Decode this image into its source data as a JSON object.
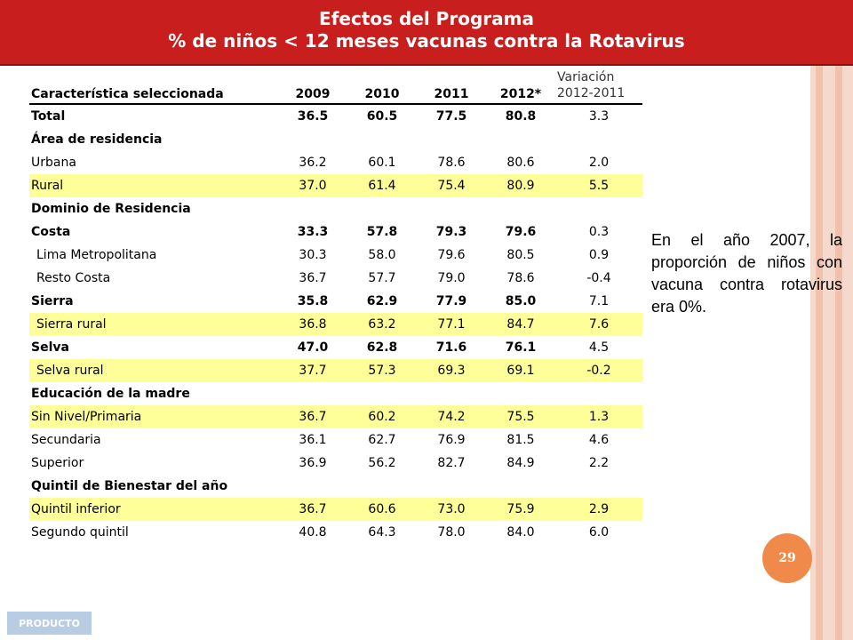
{
  "header": {
    "title": "Efectos del Programa",
    "subtitle": "% de niños < 12 meses vacunas contra la Rotavirus"
  },
  "table": {
    "columns": {
      "characteristic": "Característica seleccionada",
      "y2009": "2009",
      "y2010": "2010",
      "y2011": "2011",
      "y2012": "2012*",
      "variation_line1": "Variación",
      "variation_line2": "2012-2011"
    },
    "rows": [
      {
        "label": "Total",
        "v2009": "36.5",
        "v2010": "60.5",
        "v2011": "77.5",
        "v2012": "80.8",
        "var": "3.3",
        "bold": true,
        "highlight": false,
        "indent": false
      },
      {
        "label": "Área de residencia",
        "section": true
      },
      {
        "label": "Urbana",
        "v2009": "36.2",
        "v2010": "60.1",
        "v2011": "78.6",
        "v2012": "80.6",
        "var": "2.0",
        "bold": false,
        "highlight": false,
        "indent": false
      },
      {
        "label": "Rural",
        "v2009": "37.0",
        "v2010": "61.4",
        "v2011": "75.4",
        "v2012": "80.9",
        "var": "5.5",
        "bold": false,
        "highlight": true,
        "indent": false
      },
      {
        "label": "Dominio de Residencia",
        "section": true
      },
      {
        "label": "Costa",
        "v2009": "33.3",
        "v2010": "57.8",
        "v2011": "79.3",
        "v2012": "79.6",
        "var": "0.3",
        "bold": true,
        "highlight": false,
        "indent": false
      },
      {
        "label": "Lima Metropolitana",
        "v2009": "30.3",
        "v2010": "58.0",
        "v2011": "79.6",
        "v2012": "80.5",
        "var": "0.9",
        "bold": false,
        "highlight": false,
        "indent": true
      },
      {
        "label": "Resto Costa",
        "v2009": "36.7",
        "v2010": "57.7",
        "v2011": "79.0",
        "v2012": "78.6",
        "var": "-0.4",
        "bold": false,
        "highlight": false,
        "indent": true
      },
      {
        "label": "Sierra",
        "v2009": "35.8",
        "v2010": "62.9",
        "v2011": "77.9",
        "v2012": "85.0",
        "var": "7.1",
        "bold": true,
        "highlight": false,
        "indent": false
      },
      {
        "label": "Sierra rural",
        "v2009": "36.8",
        "v2010": "63.2",
        "v2011": "77.1",
        "v2012": "84.7",
        "var": "7.6",
        "bold": false,
        "highlight": true,
        "indent": true
      },
      {
        "label": "Selva",
        "v2009": "47.0",
        "v2010": "62.8",
        "v2011": "71.6",
        "v2012": "76.1",
        "var": "4.5",
        "bold": true,
        "highlight": false,
        "indent": false
      },
      {
        "label": "Selva rural",
        "v2009": "37.7",
        "v2010": "57.3",
        "v2011": "69.3",
        "v2012": "69.1",
        "var": "-0.2",
        "bold": false,
        "highlight": true,
        "indent": true
      },
      {
        "label": "Educación de la madre",
        "section": true
      },
      {
        "label": "Sin Nivel/Primaria",
        "v2009": "36.7",
        "v2010": "60.2",
        "v2011": "74.2",
        "v2012": "75.5",
        "var": "1.3",
        "bold": false,
        "highlight": true,
        "indent": false
      },
      {
        "label": "Secundaria",
        "v2009": "36.1",
        "v2010": "62.7",
        "v2011": "76.9",
        "v2012": "81.5",
        "var": "4.6",
        "bold": false,
        "highlight": false,
        "indent": false
      },
      {
        "label": "Superior",
        "v2009": "36.9",
        "v2010": "56.2",
        "v2011": "82.7",
        "v2012": "84.9",
        "var": "2.2",
        "bold": false,
        "highlight": false,
        "indent": false
      },
      {
        "label": "Quintil de Bienestar del año",
        "section": true
      },
      {
        "label": "Quintil inferior",
        "v2009": "36.7",
        "v2010": "60.6",
        "v2011": "73.0",
        "v2012": "75.9",
        "var": "2.9",
        "bold": false,
        "highlight": true,
        "indent": false
      },
      {
        "label": "Segundo quintil",
        "v2009": "40.8",
        "v2010": "64.3",
        "v2011": "78.0",
        "v2012": "84.0",
        "var": "6.0",
        "bold": false,
        "highlight": false,
        "indent": false
      }
    ]
  },
  "side_note": "En el año 2007, la proporción de niños con vacuna contra rotavirus era 0%.",
  "page_number": "29",
  "footer_tag": "PRODUCTO",
  "colors": {
    "header_bg": "#c91e1e",
    "highlight_row": "#ffff99",
    "page_badge": "#f08a4b",
    "footer_tag_bg": "#b8cce4"
  }
}
